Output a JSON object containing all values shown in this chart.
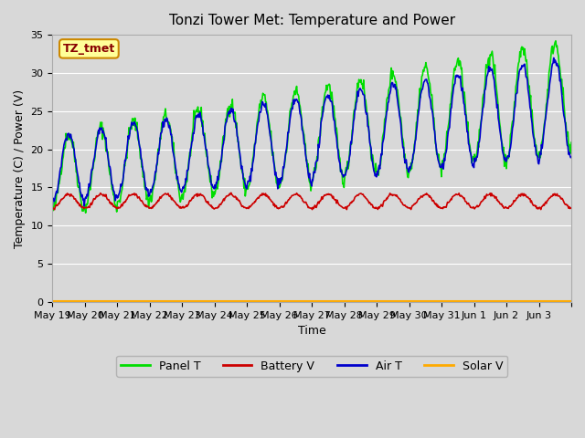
{
  "title": "Tonzi Tower Met: Temperature and Power",
  "xlabel": "Time",
  "ylabel": "Temperature (C) / Power (V)",
  "ylim": [
    0,
    35
  ],
  "yticks": [
    0,
    5,
    10,
    15,
    20,
    25,
    30,
    35
  ],
  "legend_label": "TZ_tmet",
  "series_labels": [
    "Panel T",
    "Battery V",
    "Air T",
    "Solar V"
  ],
  "series_colors": [
    "#00dd00",
    "#cc0000",
    "#0000cc",
    "#ffaa00"
  ],
  "background_color": "#d8d8d8",
  "n_days": 16,
  "x_tick_labels": [
    "May 19",
    "May 20",
    "May 21",
    "May 22",
    "May 23",
    "May 24",
    "May 25",
    "May 26",
    "May 27",
    "May 28",
    "May 29",
    "May 30",
    "May 31",
    "Jun 1",
    "Jun 2",
    "Jun 3"
  ]
}
